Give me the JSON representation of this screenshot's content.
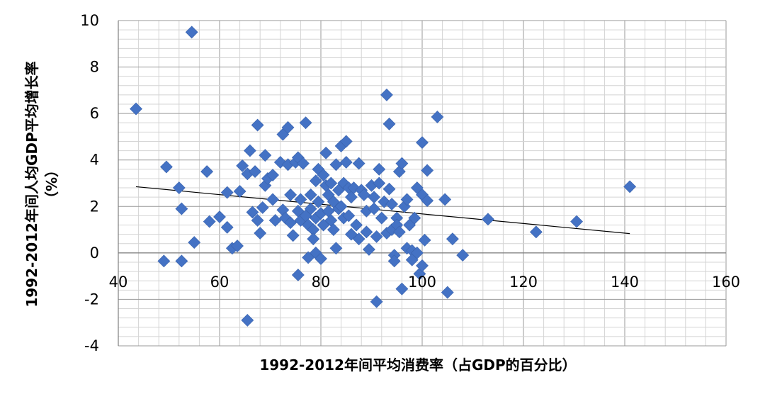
{
  "chart_data": {
    "type": "scatter",
    "title": "",
    "xlabel": "1992-2012年间平均消费率（占GDP的百分比）",
    "ylabel_line1": "1992-2012年间人均GDP平均增长率",
    "ylabel_line2": "（%）",
    "xlim": [
      40,
      160
    ],
    "ylim": [
      -4,
      10
    ],
    "x_ticks": [
      40,
      60,
      80,
      100,
      120,
      140,
      160
    ],
    "y_ticks": [
      -4,
      -2,
      0,
      2,
      4,
      6,
      8,
      10
    ],
    "x_minor_step": 4,
    "y_minor_step": 0.4,
    "grid": true,
    "x_axis_at_y": 0,
    "marker_color": "#4472C4",
    "trendline": {
      "x": [
        43.5,
        141
      ],
      "y": [
        2.85,
        0.83
      ],
      "color": "#000000"
    },
    "points": [
      [
        43.5,
        6.2
      ],
      [
        54.5,
        9.5
      ],
      [
        49.5,
        3.7
      ],
      [
        52,
        2.8
      ],
      [
        52.5,
        1.9
      ],
      [
        49,
        -0.35
      ],
      [
        52.5,
        -0.35
      ],
      [
        55,
        0.45
      ],
      [
        57.5,
        3.5
      ],
      [
        58,
        1.35
      ],
      [
        60,
        1.55
      ],
      [
        61.5,
        2.6
      ],
      [
        61.5,
        1.1
      ],
      [
        62.5,
        0.2
      ],
      [
        63.5,
        0.3
      ],
      [
        64,
        2.65
      ],
      [
        64.5,
        3.75
      ],
      [
        65.5,
        3.4
      ],
      [
        66,
        4.4
      ],
      [
        66.5,
        1.75
      ],
      [
        67,
        3.5
      ],
      [
        67.5,
        5.5
      ],
      [
        67.5,
        1.4
      ],
      [
        68,
        0.85
      ],
      [
        68.5,
        1.95
      ],
      [
        69,
        4.2
      ],
      [
        69,
        2.9
      ],
      [
        69.5,
        3.2
      ],
      [
        70.5,
        2.3
      ],
      [
        70.5,
        3.35
      ],
      [
        71,
        1.4
      ],
      [
        72,
        3.9
      ],
      [
        72.5,
        5.1
      ],
      [
        72.5,
        1.85
      ],
      [
        73,
        1.5
      ],
      [
        73.5,
        3.8
      ],
      [
        73.5,
        5.4
      ],
      [
        74,
        2.5
      ],
      [
        74,
        1.3
      ],
      [
        74.5,
        0.75
      ],
      [
        75,
        3.9
      ],
      [
        75.5,
        4.1
      ],
      [
        75.5,
        1.8
      ],
      [
        76,
        2.3
      ],
      [
        76,
        1.4
      ],
      [
        76.5,
        3.85
      ],
      [
        77,
        5.6
      ],
      [
        77,
        1.6
      ],
      [
        77.5,
        1.2
      ],
      [
        77.5,
        -0.2
      ],
      [
        78,
        2.5
      ],
      [
        78,
        1.9
      ],
      [
        78.5,
        1.0
      ],
      [
        78.5,
        0.6
      ],
      [
        79,
        3.1
      ],
      [
        79,
        1.5
      ],
      [
        79,
        0.0
      ],
      [
        79.5,
        3.6
      ],
      [
        79.5,
        2.2
      ],
      [
        80,
        1.7
      ],
      [
        80,
        -0.25
      ],
      [
        80.5,
        3.35
      ],
      [
        80.5,
        1.2
      ],
      [
        81,
        2.9
      ],
      [
        81,
        4.3
      ],
      [
        81.5,
        1.8
      ],
      [
        81.5,
        2.5
      ],
      [
        82,
        3.0
      ],
      [
        82,
        1.4
      ],
      [
        82.5,
        2.2
      ],
      [
        82.5,
        1.0
      ],
      [
        83,
        3.8
      ],
      [
        83,
        0.2
      ],
      [
        83.5,
        2.7
      ],
      [
        83.5,
        1.9
      ],
      [
        84,
        4.6
      ],
      [
        84,
        2.0
      ],
      [
        84.5,
        3.0
      ],
      [
        84.5,
        1.5
      ],
      [
        85,
        3.9
      ],
      [
        85,
        4.8
      ],
      [
        85.5,
        2.8
      ],
      [
        85.5,
        1.6
      ],
      [
        86,
        2.4
      ],
      [
        86,
        0.8
      ],
      [
        86.5,
        2.8
      ],
      [
        87,
        1.2
      ],
      [
        87.5,
        3.85
      ],
      [
        87.5,
        0.6
      ],
      [
        88,
        2.7
      ],
      [
        88.5,
        2.5
      ],
      [
        89,
        1.8
      ],
      [
        89,
        0.9
      ],
      [
        89.5,
        0.15
      ],
      [
        90,
        2.9
      ],
      [
        90.5,
        2.4
      ],
      [
        90.5,
        1.9
      ],
      [
        91,
        0.7
      ],
      [
        91,
        -2.1
      ],
      [
        91.5,
        3.6
      ],
      [
        91.5,
        3.0
      ],
      [
        92,
        1.5
      ],
      [
        92.5,
        2.2
      ],
      [
        93,
        6.8
      ],
      [
        93,
        0.85
      ],
      [
        93.5,
        5.55
      ],
      [
        93.5,
        2.75
      ],
      [
        94,
        2.1
      ],
      [
        94,
        1.0
      ],
      [
        94.5,
        -0.1
      ],
      [
        94.5,
        -0.35
      ],
      [
        95,
        1.5
      ],
      [
        95,
        1.2
      ],
      [
        95.5,
        3.5
      ],
      [
        95.5,
        0.9
      ],
      [
        96,
        3.85
      ],
      [
        96,
        -1.55
      ],
      [
        96.5,
        2.0
      ],
      [
        97,
        2.3
      ],
      [
        97,
        0.2
      ],
      [
        97.5,
        1.2
      ],
      [
        98,
        0.1
      ],
      [
        98,
        -0.3
      ],
      [
        98.5,
        1.5
      ],
      [
        99,
        2.8
      ],
      [
        99,
        0.0
      ],
      [
        99.5,
        -0.9
      ],
      [
        100,
        4.75
      ],
      [
        100,
        2.5
      ],
      [
        100.5,
        0.55
      ],
      [
        101,
        3.55
      ],
      [
        101,
        2.25
      ],
      [
        103,
        5.85
      ],
      [
        104.5,
        2.3
      ],
      [
        105,
        -1.7
      ],
      [
        106,
        0.6
      ],
      [
        108,
        -0.1
      ],
      [
        113,
        1.45
      ],
      [
        122.5,
        0.9
      ],
      [
        130.5,
        1.35
      ],
      [
        141,
        2.85
      ],
      [
        65.5,
        -2.9
      ],
      [
        75.5,
        -0.95
      ],
      [
        100,
        -0.55
      ]
    ]
  }
}
